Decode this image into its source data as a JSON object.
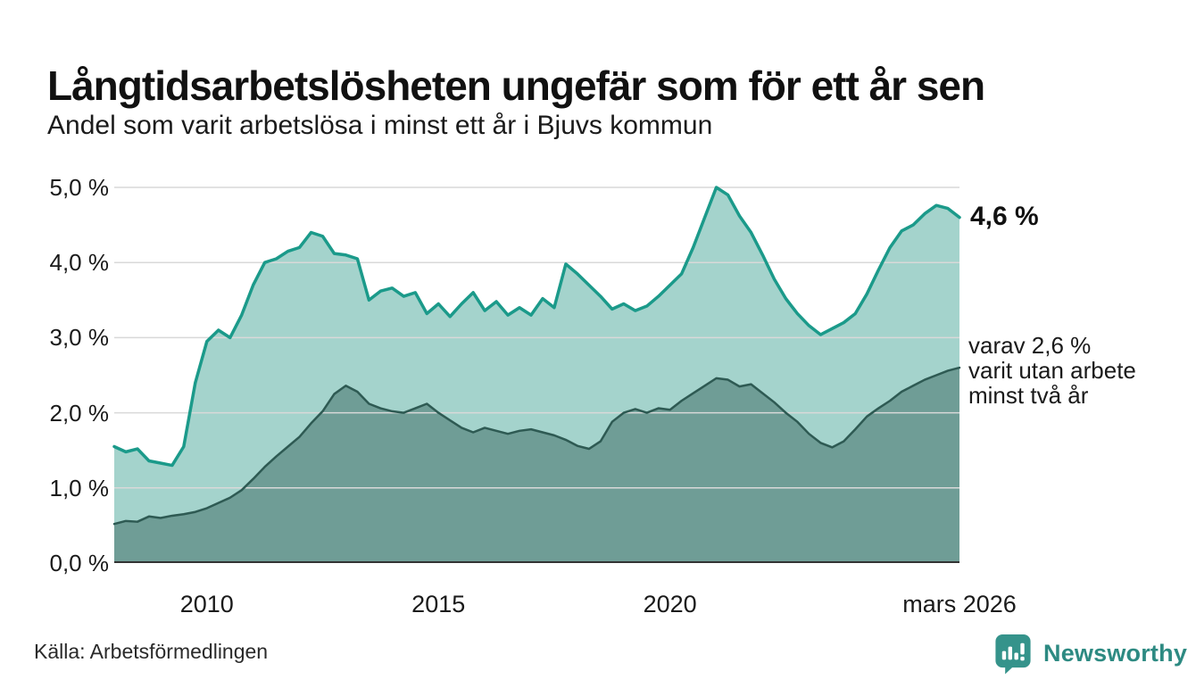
{
  "header": {
    "title": "Långtidsarbetslösheten ungefär som för ett år sen",
    "subtitle": "Andel som varit arbetslösa i minst ett år i Bjuvs kommun"
  },
  "annotations": {
    "total_end_label": "4,6 %",
    "two_year_lines": [
      "varav 2,6 %",
      "varit utan arbete",
      "minst två år"
    ]
  },
  "footer": {
    "source": "Källa: Arbetsförmedlingen",
    "brand": "Newsworthy"
  },
  "colors": {
    "total_line": "#1b9a8a",
    "total_fill": "#a4d3cc",
    "two_year_line": "#2e5a53",
    "two_year_fill": "#6f9d96",
    "gridline": "#d9d9d9",
    "baseline": "#333333",
    "brand_teal": "#35938b",
    "brand_text": "#2d8a82"
  },
  "chart_data": {
    "type": "area",
    "title": "Långtidsarbetslösheten ungefär som för ett år sen",
    "subtitle": "Andel som varit arbetslösa i minst ett år i Bjuvs kommun",
    "unit": "%",
    "x_start": 2008.0,
    "x_step": 0.25,
    "x_end": 2026.25,
    "ylim": [
      0,
      5
    ],
    "yticks": [
      0,
      1,
      2,
      3,
      4,
      5
    ],
    "ytick_labels": [
      "0,0 %",
      "1,0 %",
      "2,0 %",
      "3,0 %",
      "4,0 %",
      "5,0 %"
    ],
    "xticks": [
      {
        "x": 2010,
        "label": "2010"
      },
      {
        "x": 2015,
        "label": "2015"
      },
      {
        "x": 2020,
        "label": "2020"
      },
      {
        "x": 2026.25,
        "label": "mars 2026"
      }
    ],
    "grid": true,
    "legend": "none",
    "series": [
      {
        "name": "Andel arbetslösa minst ett år",
        "end_value": 4.6,
        "line_color": "#1b9a8a",
        "fill_color": "#a4d3cc",
        "values": [
          1.55,
          1.48,
          1.52,
          1.36,
          1.33,
          1.3,
          1.55,
          2.4,
          2.95,
          3.1,
          3.0,
          3.3,
          3.7,
          4.0,
          4.05,
          4.15,
          4.2,
          4.4,
          4.35,
          4.12,
          4.1,
          4.05,
          3.5,
          3.62,
          3.66,
          3.55,
          3.6,
          3.32,
          3.45,
          3.28,
          3.45,
          3.6,
          3.36,
          3.48,
          3.3,
          3.4,
          3.3,
          3.52,
          3.4,
          3.98,
          3.85,
          3.7,
          3.55,
          3.38,
          3.45,
          3.36,
          3.42,
          3.55,
          3.7,
          3.85,
          4.2,
          4.6,
          5.0,
          4.9,
          4.62,
          4.4,
          4.1,
          3.78,
          3.52,
          3.32,
          3.16,
          3.04,
          3.12,
          3.2,
          3.32,
          3.58,
          3.9,
          4.2,
          4.42,
          4.5,
          4.65,
          4.76,
          4.72,
          4.6
        ]
      },
      {
        "name": "varav utan arbete minst två år",
        "end_value": 2.6,
        "line_color": "#2e5a53",
        "fill_color": "#6f9d96",
        "values": [
          0.52,
          0.56,
          0.55,
          0.62,
          0.6,
          0.63,
          0.65,
          0.68,
          0.73,
          0.8,
          0.87,
          0.97,
          1.12,
          1.28,
          1.42,
          1.55,
          1.68,
          1.86,
          2.02,
          2.25,
          2.36,
          2.28,
          2.12,
          2.06,
          2.02,
          2.0,
          2.06,
          2.12,
          2.0,
          1.9,
          1.8,
          1.74,
          1.8,
          1.76,
          1.72,
          1.76,
          1.78,
          1.74,
          1.7,
          1.64,
          1.56,
          1.52,
          1.62,
          1.88,
          2.0,
          2.05,
          2.0,
          2.06,
          2.04,
          2.16,
          2.26,
          2.36,
          2.46,
          2.44,
          2.35,
          2.38,
          2.26,
          2.14,
          2.0,
          1.88,
          1.72,
          1.6,
          1.54,
          1.62,
          1.78,
          1.95,
          2.06,
          2.16,
          2.28,
          2.36,
          2.44,
          2.5,
          2.56,
          2.6
        ]
      }
    ]
  }
}
